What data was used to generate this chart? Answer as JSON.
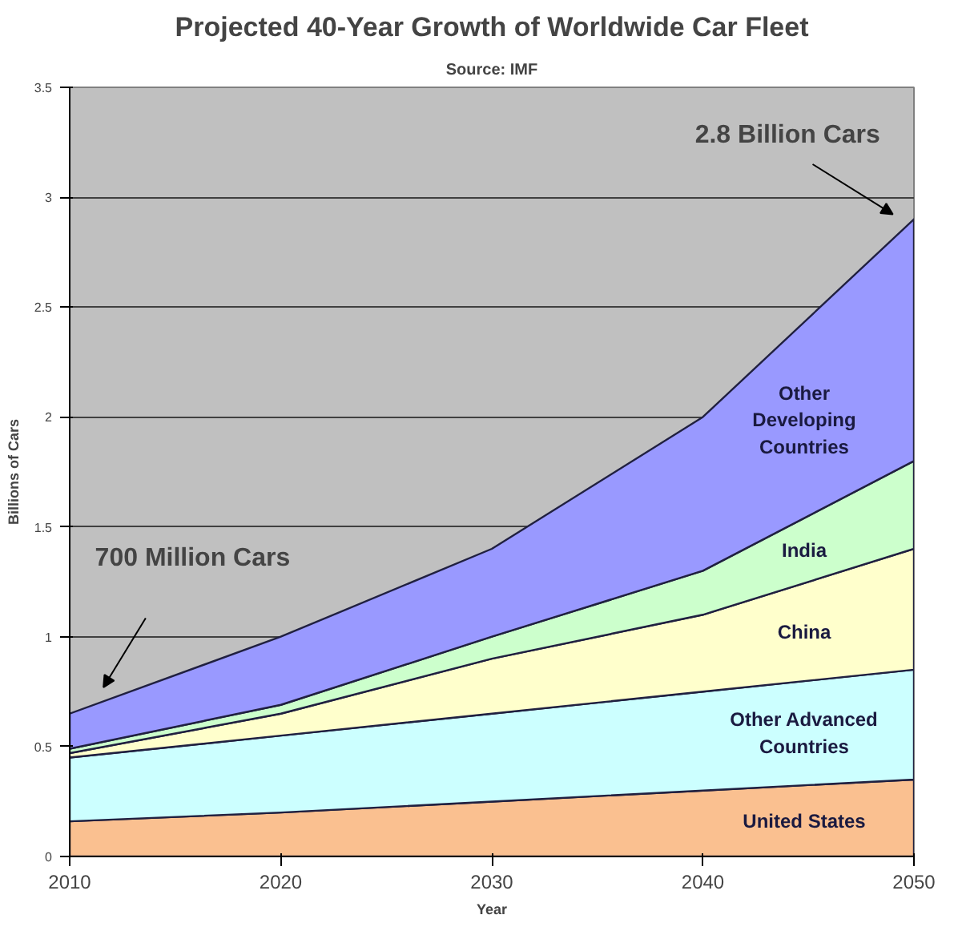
{
  "chart_data": {
    "type": "area",
    "stacked": true,
    "title": "Projected 40-Year Growth of Worldwide Car Fleet",
    "subtitle": "Source: IMF",
    "xlabel": "Year",
    "ylabel": "Billions of Cars",
    "x": [
      2010,
      2020,
      2030,
      2040,
      2050
    ],
    "series": [
      {
        "name": "United States",
        "color": "#fac090",
        "values": [
          0.16,
          0.2,
          0.25,
          0.3,
          0.35
        ]
      },
      {
        "name": "Other Advanced Countries",
        "color": "#ccffff",
        "values": [
          0.29,
          0.35,
          0.4,
          0.45,
          0.5
        ]
      },
      {
        "name": "China",
        "color": "#ffffcc",
        "values": [
          0.02,
          0.1,
          0.25,
          0.35,
          0.55
        ]
      },
      {
        "name": "India",
        "color": "#ccffcc",
        "values": [
          0.02,
          0.04,
          0.1,
          0.2,
          0.4
        ]
      },
      {
        "name": "Other Developing Countries",
        "color": "#9999ff",
        "values": [
          0.16,
          0.31,
          0.4,
          0.7,
          1.1
        ]
      }
    ],
    "annotations": [
      "700 Million Cars",
      "2.8 Billion Cars"
    ],
    "xlim": [
      2010,
      2050
    ],
    "ylim": [
      0,
      3.5
    ],
    "xticks": [
      2010,
      2020,
      2030,
      2040,
      2050
    ],
    "yticks": [
      0,
      0.5,
      1,
      1.5,
      2,
      2.5,
      3,
      3.5
    ],
    "grid": "y"
  }
}
